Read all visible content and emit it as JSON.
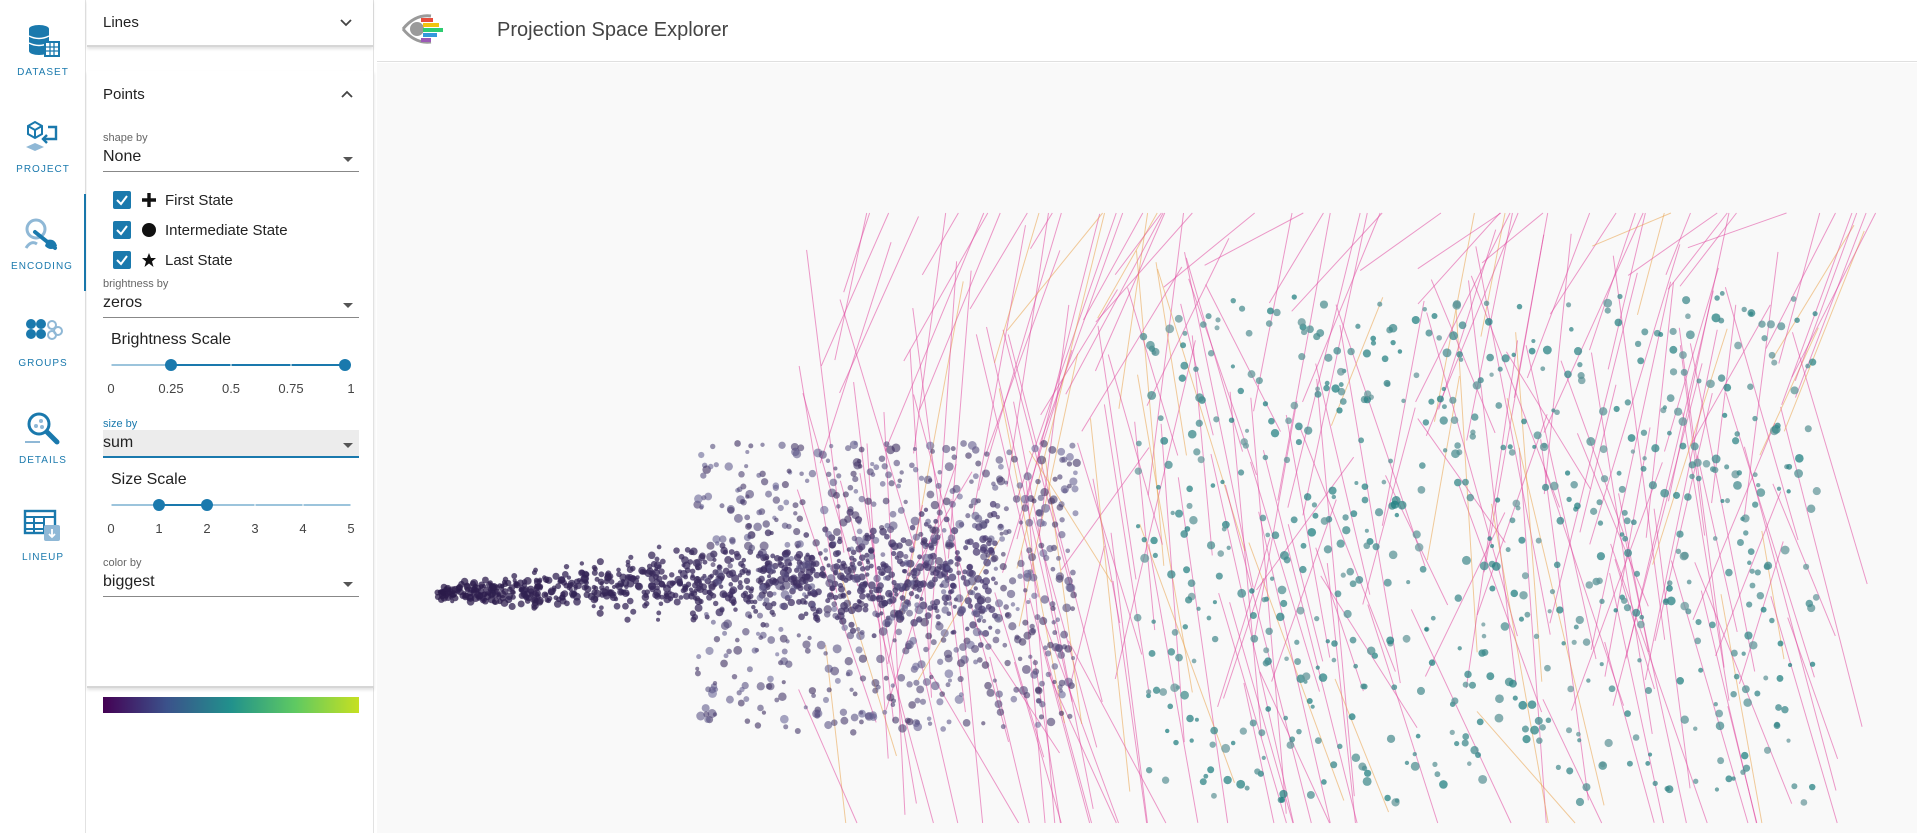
{
  "rail": {
    "items": [
      {
        "label": "DATASET",
        "icon": "database-icon"
      },
      {
        "label": "PROJECT",
        "icon": "project-icon"
      },
      {
        "label": "ENCODING",
        "icon": "encoding-icon"
      },
      {
        "label": "GROUPS",
        "icon": "groups-icon"
      },
      {
        "label": "DETAILS",
        "icon": "details-icon"
      },
      {
        "label": "LINEUP",
        "icon": "lineup-icon"
      }
    ],
    "active": "ENCODING"
  },
  "panel": {
    "lines": {
      "title": "Lines"
    },
    "points": {
      "title": "Points",
      "shape_by": {
        "label": "shape by",
        "value": "None"
      },
      "states": [
        {
          "label": "First State",
          "shape": "cross",
          "checked": true
        },
        {
          "label": "Intermediate State",
          "shape": "circle",
          "checked": true
        },
        {
          "label": "Last State",
          "shape": "star",
          "checked": true
        }
      ],
      "brightness_by": {
        "label": "brightness by",
        "value": "zeros"
      },
      "brightness_scale": {
        "title": "Brightness Scale",
        "ticks": [
          "0",
          "0.25",
          "0.5",
          "0.75",
          "1"
        ],
        "range": [
          0.25,
          1
        ]
      },
      "size_by": {
        "label": "size by",
        "value": "sum"
      },
      "size_scale": {
        "title": "Size Scale",
        "ticks": [
          "0",
          "1",
          "2",
          "3",
          "4",
          "5"
        ],
        "range": [
          1,
          2
        ]
      },
      "color_by": {
        "label": "color by",
        "value": "biggest"
      },
      "colormap": [
        "#440154",
        "#3b528b",
        "#21918c",
        "#5ec962",
        "#c6e021"
      ]
    }
  },
  "header": {
    "title": "Projection Space Explorer"
  },
  "colors": {
    "accent": "#1a79ad",
    "line_pink": "#e0479e",
    "line_orange": "#e9a24a",
    "point_dark": "#3a2a5c",
    "point_teal": "#2f8f8a"
  }
}
